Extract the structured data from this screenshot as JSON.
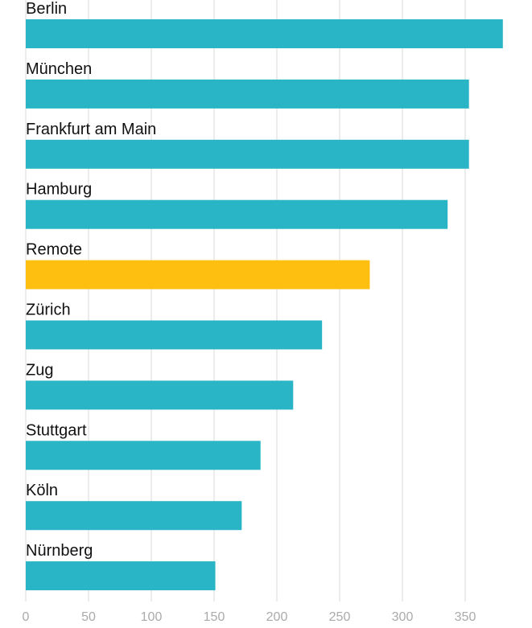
{
  "chart_data": {
    "type": "bar",
    "orientation": "horizontal",
    "title": "",
    "xlabel": "",
    "ylabel": "",
    "categories": [
      "Berlin",
      "München",
      "Frankfurt am Main",
      "Hamburg",
      "Remote",
      "Zürich",
      "Zug",
      "Stuttgart",
      "Köln",
      "Nürnberg"
    ],
    "values": [
      380,
      353,
      353,
      336,
      274,
      236,
      213,
      187,
      172,
      151
    ],
    "highlight": "Remote",
    "xlim": [
      0,
      380
    ],
    "xticks": [
      0,
      50,
      100,
      150,
      200,
      250,
      300,
      350
    ],
    "grid": true,
    "colors": {
      "bar": "#29b5c5",
      "highlight": "#ffbf10",
      "grid": "#e6e6e6",
      "tick": "#aaaaaa"
    }
  }
}
